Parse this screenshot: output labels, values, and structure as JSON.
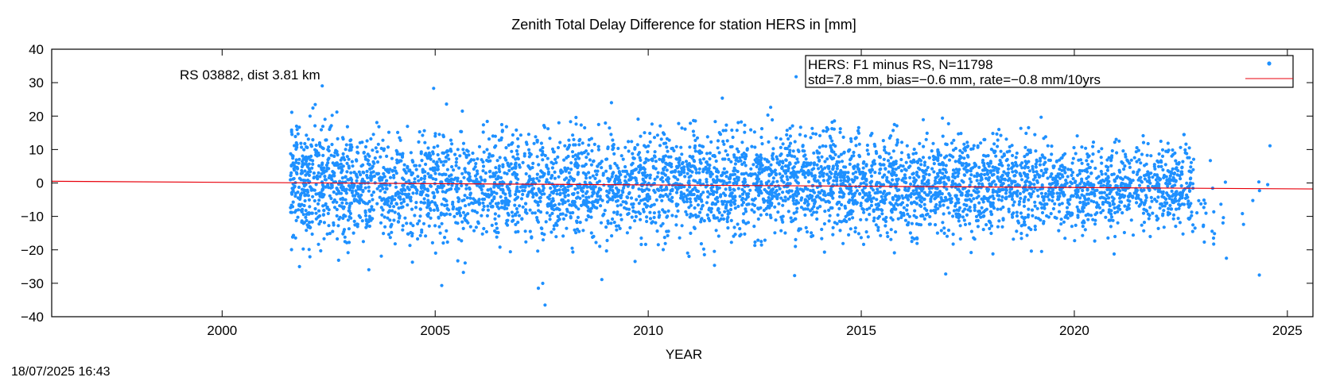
{
  "timestamp": "18/07/2025 16:43",
  "chart_data": {
    "type": "scatter",
    "title": "Zenith Total Delay Difference for station HERS in [mm]",
    "xlabel": "YEAR",
    "ylabel": "",
    "xlim": [
      1996,
      2025.6
    ],
    "ylim": [
      -40,
      40
    ],
    "x_ticks": [
      2000,
      2005,
      2010,
      2015,
      2020,
      2025
    ],
    "y_ticks": [
      -40,
      -30,
      -20,
      -10,
      0,
      10,
      20,
      30,
      40
    ],
    "grid": false,
    "annotation": "RS 03882, dist 3.81 km",
    "legend": {
      "placement": "top-right",
      "entries": [
        "HERS: F1 minus RS, N=11798",
        "std=7.8 mm, bias=−0.6 mm, rate=−0.8 mm/10yrs"
      ]
    },
    "series": [
      {
        "kind": "points",
        "color": "#1e90ff",
        "n": 11798,
        "std": 7.8,
        "bias": -0.6,
        "x_range": [
          2001.6,
          2024.6
        ],
        "density": [
          {
            "x": [
              2001.6,
              2003.0
            ],
            "std": 8.5,
            "mean": 0.5,
            "weight": 1.6
          },
          {
            "x": [
              2003.0,
              2006.5
            ],
            "std": 8.0,
            "mean": -1.0,
            "weight": 1.2
          },
          {
            "x": [
              2006.5,
              2010.0
            ],
            "std": 8.0,
            "mean": -1.0,
            "weight": 1.2
          },
          {
            "x": [
              2010.0,
              2015.0
            ],
            "std": 7.8,
            "mean": 0.5,
            "weight": 1.3
          },
          {
            "x": [
              2015.0,
              2019.0
            ],
            "std": 7.0,
            "mean": -0.5,
            "weight": 1.3
          },
          {
            "x": [
              2019.0,
              2022.8
            ],
            "std": 6.0,
            "mean": -1.5,
            "weight": 1.1
          },
          {
            "x": [
              2022.8,
              2023.3
            ],
            "std": 5.0,
            "mean": -9.0,
            "weight": 0.2
          },
          {
            "x": [
              2023.3,
              2024.6
            ],
            "std": 8.0,
            "mean": -10.0,
            "weight": 0.05
          }
        ]
      },
      {
        "kind": "trend",
        "color": "#e8000b",
        "x": [
          1996,
          2025.6
        ],
        "y": [
          0.5,
          -1.8
        ]
      }
    ]
  }
}
